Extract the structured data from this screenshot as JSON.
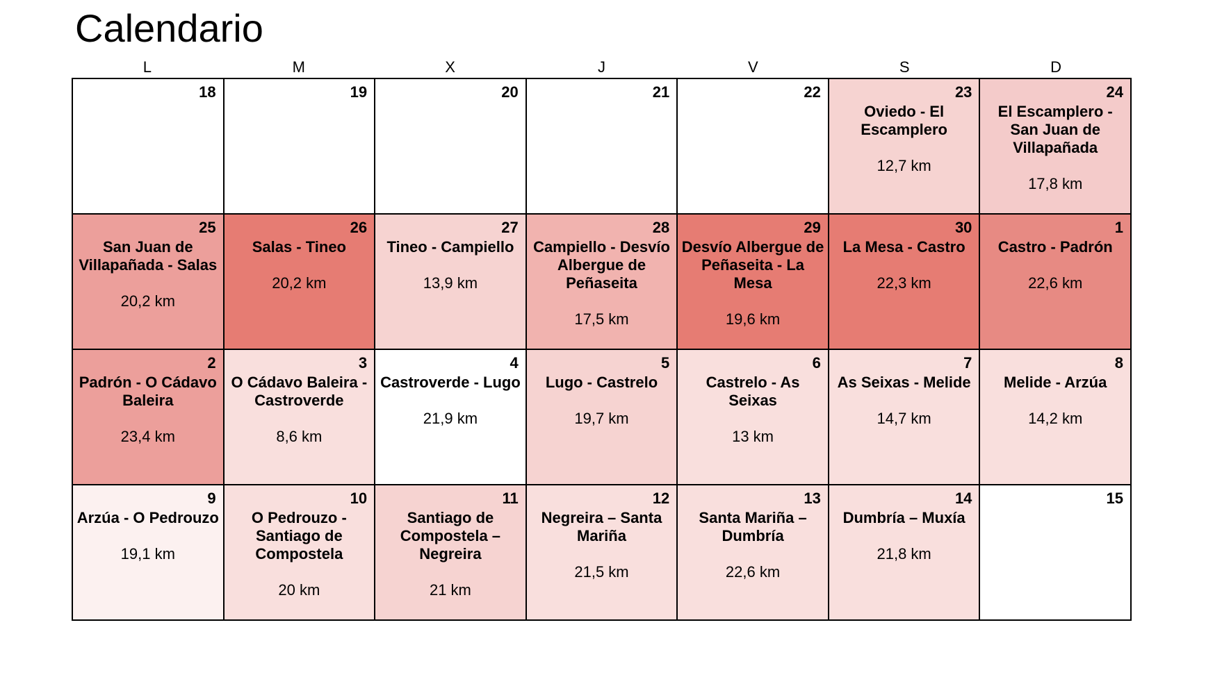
{
  "title": "Calendario",
  "weekdays": [
    "L",
    "M",
    "X",
    "J",
    "V",
    "S",
    "D"
  ],
  "cells": [
    {
      "day": "18",
      "stage": "",
      "dist": "",
      "color": "#ffffff"
    },
    {
      "day": "19",
      "stage": "",
      "dist": "",
      "color": "#ffffff"
    },
    {
      "day": "20",
      "stage": "",
      "dist": "",
      "color": "#ffffff"
    },
    {
      "day": "21",
      "stage": "",
      "dist": "",
      "color": "#ffffff"
    },
    {
      "day": "22",
      "stage": "",
      "dist": "",
      "color": "#ffffff"
    },
    {
      "day": "23",
      "stage": "Oviedo - El Escamplero",
      "dist": "12,7 km",
      "color": "#f6d3d1"
    },
    {
      "day": "24",
      "stage": "El Escamplero - San Juan de Villapañada",
      "dist": "17,8 km",
      "color": "#f4cbca"
    },
    {
      "day": "25",
      "stage": "San Juan de Villapañada - Salas",
      "dist": "20,2 km",
      "color": "#ec9f9b"
    },
    {
      "day": "26",
      "stage": "Salas - Tineo",
      "dist": "20,2 km",
      "color": "#e67c73"
    },
    {
      "day": "27",
      "stage": "Tineo - Campiello",
      "dist": "13,9 km",
      "color": "#f6d3d1"
    },
    {
      "day": "28",
      "stage": "Campiello - Desvío Albergue de Peñaseita",
      "dist": "17,5 km",
      "color": "#f1b3af"
    },
    {
      "day": "29",
      "stage": "Desvío Albergue de Peñaseita - La Mesa",
      "dist": "19,6 km",
      "color": "#e67c73"
    },
    {
      "day": "30",
      "stage": "La Mesa - Castro",
      "dist": "22,3 km",
      "color": "#e67c73"
    },
    {
      "day": "1",
      "stage": "Castro - Padrón",
      "dist": "22,6 km",
      "color": "#e78a83"
    },
    {
      "day": "2",
      "stage": "Padrón - O Cádavo Baleira",
      "dist": "23,4 km",
      "color": "#ec9f9b"
    },
    {
      "day": "3",
      "stage": "O Cádavo Baleira - Castroverde",
      "dist": "8,6 km",
      "color": "#f9dfdd"
    },
    {
      "day": "4",
      "stage": "Castroverde - Lugo",
      "dist": "21,9 km",
      "color": "#ffffff"
    },
    {
      "day": "5",
      "stage": "Lugo - Castrelo",
      "dist": "19,7 km",
      "color": "#f6d3d1"
    },
    {
      "day": "6",
      "stage": "Castrelo - As Seixas",
      "dist": "13 km",
      "color": "#f9dfdd"
    },
    {
      "day": "7",
      "stage": "As Seixas - Melide",
      "dist": "14,7 km",
      "color": "#f9dfdd"
    },
    {
      "day": "8",
      "stage": "Melide - Arzúa",
      "dist": "14,2 km",
      "color": "#f9dfdd"
    },
    {
      "day": "9",
      "stage": "Arzúa - O Pedrouzo",
      "dist": "19,1 km",
      "color": "#fcf1f0"
    },
    {
      "day": "10",
      "stage": "O Pedrouzo - Santiago de Compostela",
      "dist": "20 km",
      "color": "#f9dfdd"
    },
    {
      "day": "11",
      "stage": "Santiago de Compostela – Negreira",
      "dist": "21 km",
      "color": "#f6d3d1"
    },
    {
      "day": "12",
      "stage": "Negreira – Santa Mariña",
      "dist": "21,5 km",
      "color": "#f9dfdd"
    },
    {
      "day": "13",
      "stage": "Santa Mariña – Dumbría",
      "dist": "22,6 km",
      "color": "#f9dfdd"
    },
    {
      "day": "14",
      "stage": "Dumbría – Muxía",
      "dist": "21,8 km",
      "color": "#f9dfdd"
    },
    {
      "day": "15",
      "stage": "",
      "dist": "",
      "color": "#ffffff"
    }
  ]
}
